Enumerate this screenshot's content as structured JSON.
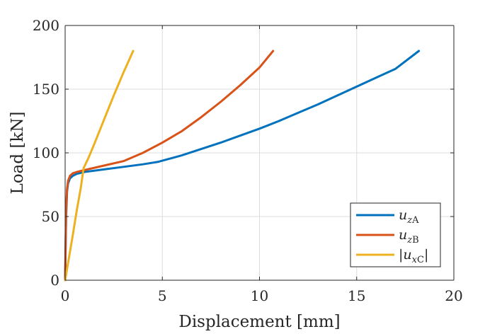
{
  "chart_data": {
    "type": "line",
    "title": "",
    "xlabel": "Displacement [mm]",
    "ylabel": "Load [kN]",
    "xlim": [
      0,
      20
    ],
    "ylim": [
      0,
      200
    ],
    "xticks": [
      0,
      5,
      10,
      15,
      20
    ],
    "xtick_labels": [
      "0",
      "5",
      "10",
      "15",
      "20"
    ],
    "yticks": [
      0,
      50,
      100,
      150,
      200
    ],
    "ytick_labels": [
      "0",
      "50",
      "100",
      "150",
      "200"
    ],
    "grid": true,
    "legend": {
      "placement": "bottom-right"
    },
    "series": [
      {
        "name": "u_zA",
        "label_main": "u",
        "label_sub_italic": "z",
        "label_sub_roman": "A",
        "abs": false,
        "color": "#0072BD",
        "x": [
          0,
          0.05,
          0.1,
          0.15,
          0.25,
          0.4,
          0.6,
          1.0,
          2.0,
          3.0,
          4.0,
          4.8,
          6.0,
          7.0,
          8.0,
          9.0,
          10.0,
          11.0,
          12.0,
          13.0,
          14.0,
          15.0,
          16.0,
          17.0,
          18.2
        ],
        "y": [
          0,
          50,
          70,
          76,
          80,
          82,
          83.5,
          85,
          87,
          89,
          91,
          93,
          98,
          103,
          108,
          113.5,
          119,
          125,
          131.5,
          138,
          145,
          152,
          159,
          166,
          180
        ]
      },
      {
        "name": "u_zB",
        "label_main": "u",
        "label_sub_italic": "z",
        "label_sub_roman": "B",
        "abs": false,
        "color": "#D95319",
        "x": [
          0,
          0.05,
          0.1,
          0.15,
          0.25,
          0.4,
          0.6,
          1.0,
          2.0,
          3.0,
          4.0,
          5.0,
          6.0,
          7.0,
          8.0,
          9.0,
          10.0,
          10.7
        ],
        "y": [
          0,
          55,
          72,
          78,
          82,
          84,
          85,
          86.5,
          90,
          93.5,
          100,
          108,
          117,
          128,
          140,
          153,
          167,
          180
        ]
      },
      {
        "name": "|u_xC|",
        "label_main": "u",
        "label_sub_italic": "x",
        "label_sub_roman": "C",
        "abs": true,
        "color": "#EDB120",
        "x": [
          0,
          0.2,
          0.4,
          0.6,
          0.8,
          0.95,
          1.2,
          1.5,
          2.0,
          2.5,
          3.0,
          3.5
        ],
        "y": [
          0,
          18,
          36,
          55,
          72,
          88,
          96,
          107,
          126,
          145,
          163,
          180
        ]
      }
    ]
  }
}
